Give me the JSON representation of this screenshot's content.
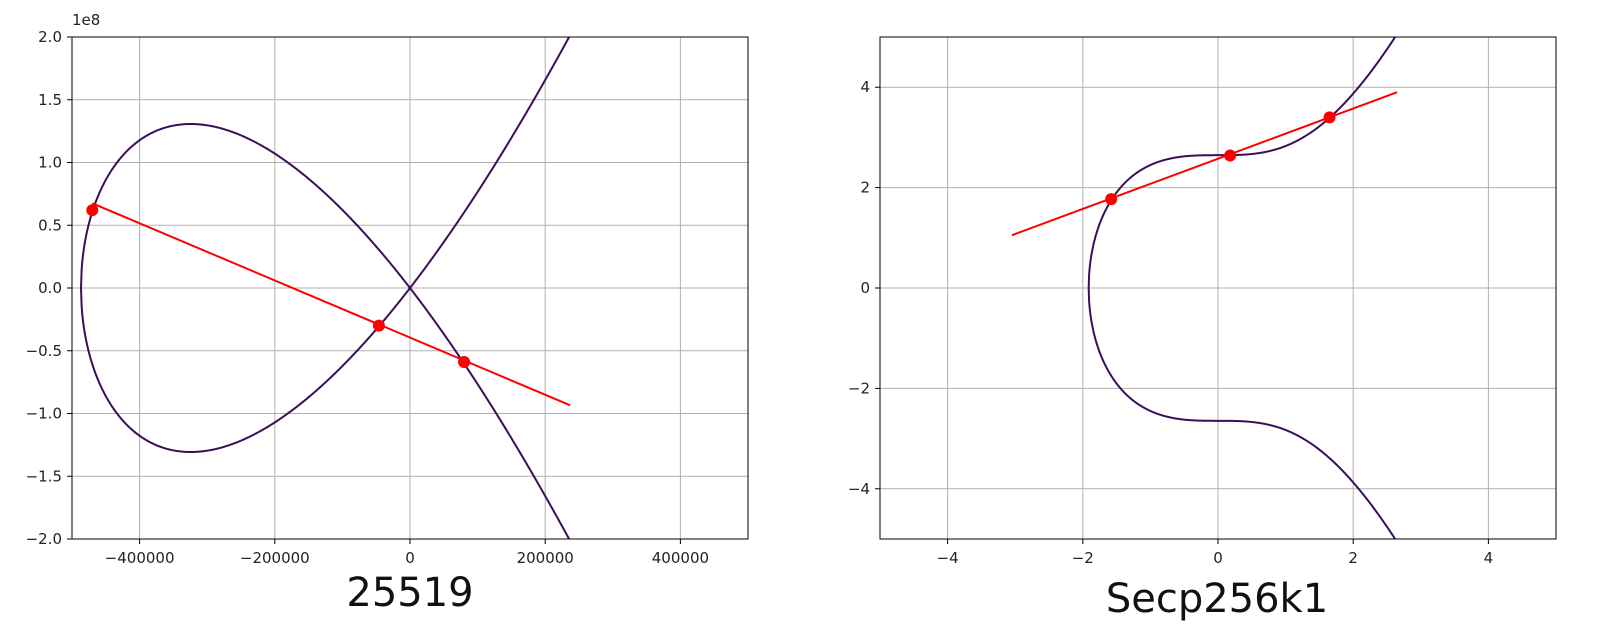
{
  "colors": {
    "curve": "#3b0f57",
    "line": "#ff0000",
    "grid": "#b0b0b0",
    "axis": "#000000"
  },
  "chart_data": [
    {
      "type": "line",
      "title": "25519",
      "xlabel": "",
      "ylabel": "",
      "xlim": [
        -500000,
        500000
      ],
      "ylim": [
        -2.0,
        2.0
      ],
      "y_offset_label": "1e8",
      "grid": true,
      "xticks": [
        -400000,
        -200000,
        0,
        200000,
        400000
      ],
      "xtick_labels": [
        "−400000",
        "−200000",
        "0",
        "200000",
        "400000"
      ],
      "yticks": [
        -2.0,
        -1.5,
        -1.0,
        -0.5,
        0.0,
        0.5,
        1.0,
        1.5,
        2.0
      ],
      "ytick_labels": [
        "−2.0",
        "−1.5",
        "−1.0",
        "−0.5",
        "0.0",
        "0.5",
        "1.0",
        "1.5",
        "2.0"
      ],
      "curve": {
        "equation": "y^2 = x^3 + 486662 x^2 + x",
        "x_range": [
          -486662,
          240000
        ]
      },
      "secant_line": {
        "x": [
          -470000,
          237000
        ],
        "y": [
          0.675,
          -0.935
        ]
      },
      "points": [
        {
          "x": -470000,
          "y": 0.62
        },
        {
          "x": -46000,
          "y": -0.3
        },
        {
          "x": 80000,
          "y": -0.59
        }
      ]
    },
    {
      "type": "line",
      "title": "Secp256k1",
      "xlabel": "",
      "ylabel": "",
      "xlim": [
        -5,
        5
      ],
      "ylim": [
        -5,
        5
      ],
      "grid": true,
      "xticks": [
        -4,
        -2,
        0,
        2,
        4
      ],
      "xtick_labels": [
        "−4",
        "−2",
        "0",
        "2",
        "4"
      ],
      "yticks": [
        -4,
        -2,
        0,
        2,
        4
      ],
      "ytick_labels": [
        "−4",
        "−2",
        "0",
        "2",
        "4"
      ],
      "curve": {
        "equation": "y^2 = x^3 + 7",
        "x_range": [
          -1.913,
          2.7
        ]
      },
      "secant_line": {
        "x": [
          -3.05,
          2.65
        ],
        "y": [
          1.05,
          3.9
        ]
      },
      "points": [
        {
          "x": -1.58,
          "y": 1.77
        },
        {
          "x": 0.18,
          "y": 2.64
        },
        {
          "x": 1.65,
          "y": 3.4
        }
      ]
    }
  ]
}
